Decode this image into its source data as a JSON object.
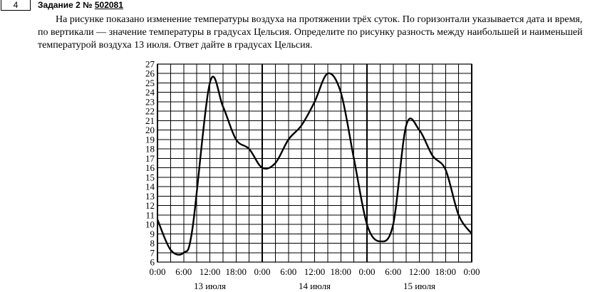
{
  "task": {
    "number": "4",
    "title_prefix": "Задание 2 №",
    "id_link": "502081",
    "text": "На рисунке показано изменение температуры воздуха на протяжении трёх суток. По горизонтали указывается дата и время, по вертикали — значение температуры в градусах Цельсия. Определите по рисунку разность между наибольшей и наименьшей температурой воздуха 13 июля. Ответ дайте в градусах Цельсия."
  },
  "chart_data": {
    "type": "line",
    "ylim": [
      6,
      27
    ],
    "yticks": [
      "6",
      "7",
      "8",
      "9",
      "10",
      "11",
      "12",
      "13",
      "14",
      "15",
      "16",
      "17",
      "18",
      "19",
      "20",
      "21",
      "22",
      "23",
      "24",
      "25",
      "26",
      "27"
    ],
    "xticks": [
      "0:00",
      "6:00",
      "12:00",
      "18:00",
      "0:00",
      "6:00",
      "12:00",
      "18:00",
      "0:00",
      "6:00",
      "12:00",
      "18:00",
      "0:00"
    ],
    "day_labels": [
      "13 июля",
      "14 июля",
      "15 июля"
    ],
    "grid": true,
    "series": [
      {
        "x_hours": [
          0,
          3,
          6,
          8,
          12,
          15,
          18,
          21,
          24,
          27,
          30,
          33,
          36,
          39,
          42,
          45,
          48,
          51,
          54,
          57,
          60,
          63,
          66,
          69,
          72
        ],
        "y": [
          10.5,
          7.3,
          7.0,
          9.5,
          25.0,
          22.5,
          19.0,
          18.0,
          16.0,
          16.5,
          19.0,
          20.5,
          23.0,
          26.0,
          24.0,
          17.0,
          10.0,
          8.2,
          10.0,
          20.5,
          20.0,
          17.3,
          15.8,
          11.0,
          9.0
        ]
      }
    ]
  }
}
